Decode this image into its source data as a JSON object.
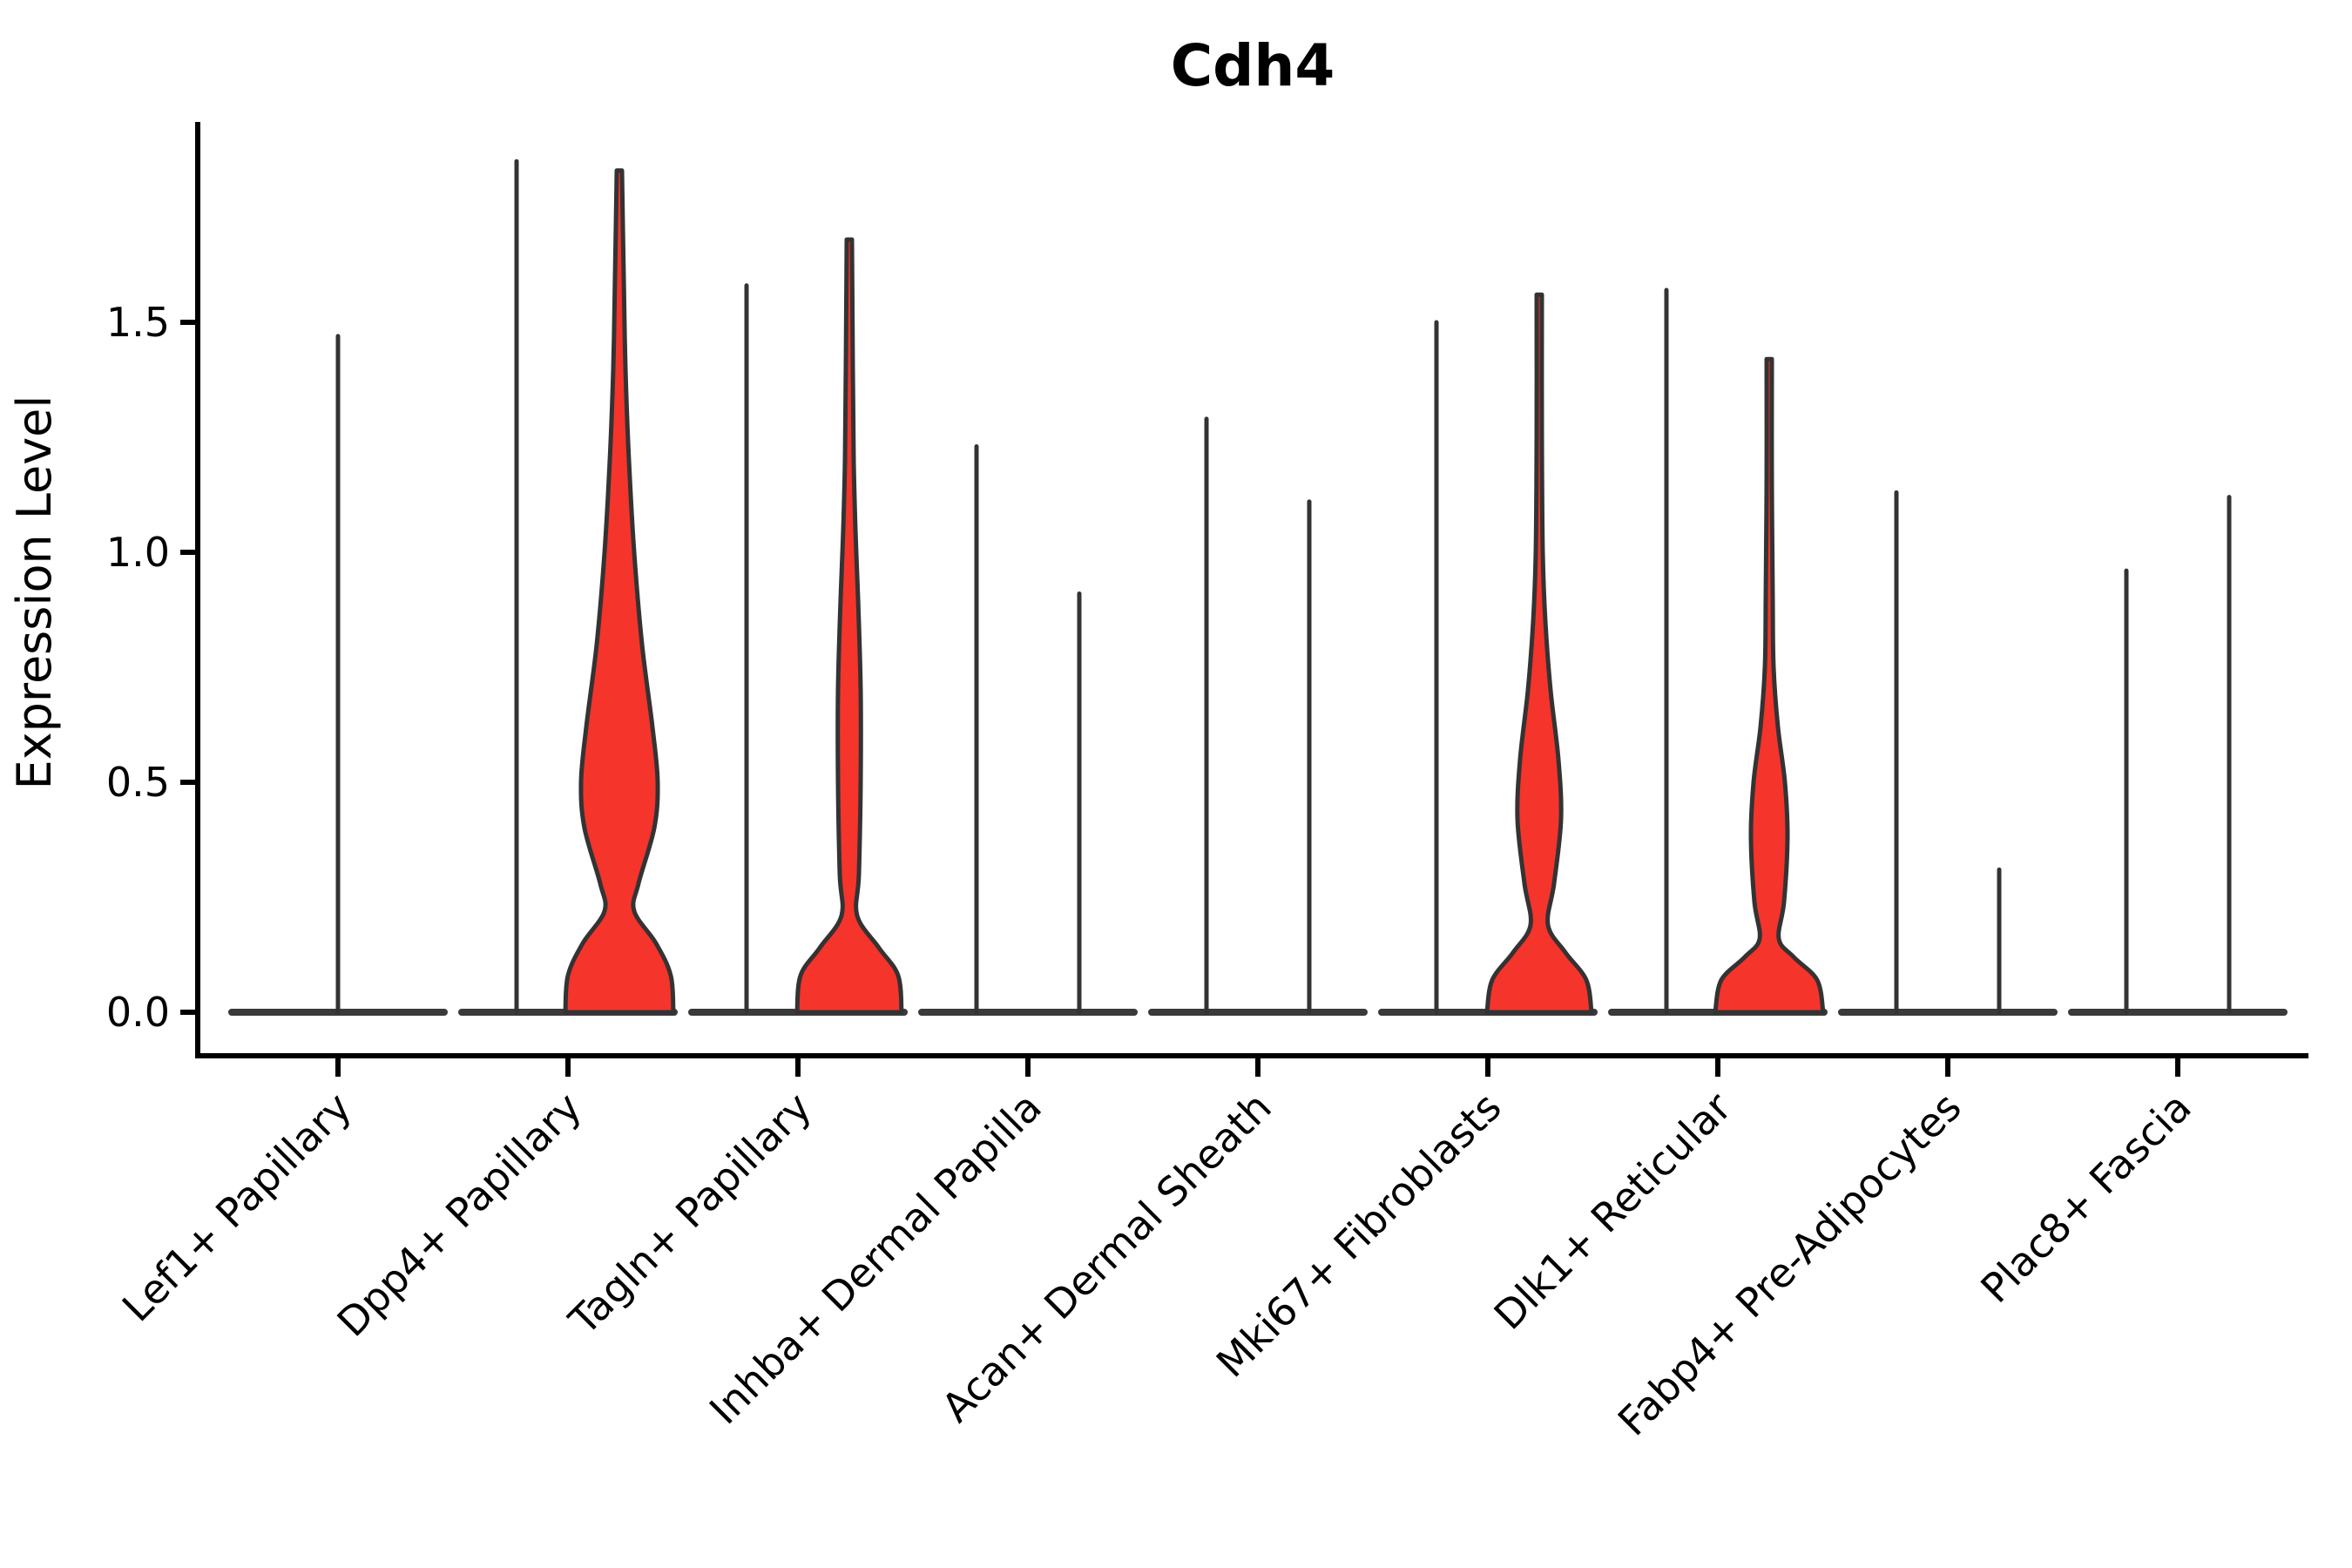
{
  "title": "Cdh4",
  "y_axis": {
    "label": "Expression Level",
    "tick_values": [
      0.0,
      0.5,
      1.0,
      1.5
    ],
    "tick_labels": [
      "0.0",
      "0.5",
      "1.0",
      "1.5"
    ]
  },
  "colors": {
    "violin_fill": "#F5342C",
    "violin_stroke": "#333333",
    "baseline_stroke": "#3a3a3a",
    "axis": "#000000",
    "text": "#000000"
  },
  "chart_data": {
    "type": "violin",
    "title": "Cdh4",
    "xlabel": "",
    "ylabel": "Expression Level",
    "ylim": [
      -0.1,
      1.93
    ],
    "yticks": [
      0,
      0.5,
      1.0,
      1.5
    ],
    "grid": false,
    "legend": "none",
    "x_tick_angle": 45,
    "categories": [
      "Lef1+ Papillary",
      "Dpp4+ Papillary",
      "Tagln+ Papillary",
      "Inhba+ Dermal Papilla",
      "Acan+ Dermal Sheath",
      "Mki67+ Fibroblasts",
      "Dlk1+ Reticular",
      "Fabp4+ Pre-Adipocytes",
      "Plac8+ Fascia"
    ],
    "violins": [
      {
        "category": "Lef1+ Papillary",
        "cat_index": 0,
        "side": "center",
        "kind": "spike",
        "max_expression": 1.47
      },
      {
        "category": "Dpp4+ Papillary",
        "cat_index": 1,
        "side": "left",
        "kind": "spike",
        "max_expression": 1.85
      },
      {
        "category": "Dpp4+ Papillary",
        "cat_index": 1,
        "side": "right",
        "kind": "filled",
        "max_expression": 1.83,
        "profile": [
          [
            0,
            62
          ],
          [
            0.08,
            59
          ],
          [
            0.15,
            42
          ],
          [
            0.22,
            17
          ],
          [
            0.28,
            22
          ],
          [
            0.4,
            40
          ],
          [
            0.5,
            44
          ],
          [
            0.62,
            38
          ],
          [
            0.8,
            26
          ],
          [
            1.0,
            17
          ],
          [
            1.2,
            11
          ],
          [
            1.4,
            7
          ],
          [
            1.6,
            5
          ],
          [
            1.83,
            3
          ]
        ]
      },
      {
        "category": "Tagln+ Papillary",
        "cat_index": 2,
        "side": "left",
        "kind": "spike",
        "max_expression": 1.58
      },
      {
        "category": "Tagln+ Papillary",
        "cat_index": 2,
        "side": "right",
        "kind": "filled",
        "max_expression": 1.68,
        "profile": [
          [
            0,
            60
          ],
          [
            0.08,
            56
          ],
          [
            0.14,
            34
          ],
          [
            0.21,
            9
          ],
          [
            0.3,
            11
          ],
          [
            0.5,
            13
          ],
          [
            0.7,
            13
          ],
          [
            0.9,
            10
          ],
          [
            1.05,
            7
          ],
          [
            1.2,
            5
          ],
          [
            1.4,
            4
          ],
          [
            1.68,
            3
          ]
        ]
      },
      {
        "category": "Inhba+ Dermal Papilla",
        "cat_index": 3,
        "side": "left",
        "kind": "spike",
        "max_expression": 1.23
      },
      {
        "category": "Inhba+ Dermal Papilla",
        "cat_index": 3,
        "side": "right",
        "kind": "spike",
        "max_expression": 0.91
      },
      {
        "category": "Acan+ Dermal Sheath",
        "cat_index": 4,
        "side": "left",
        "kind": "spike",
        "max_expression": 1.29
      },
      {
        "category": "Acan+ Dermal Sheath",
        "cat_index": 4,
        "side": "right",
        "kind": "spike",
        "max_expression": 1.11
      },
      {
        "category": "Mki67+ Fibroblasts",
        "cat_index": 5,
        "side": "left",
        "kind": "spike",
        "max_expression": 1.5
      },
      {
        "category": "Mki67+ Fibroblasts",
        "cat_index": 5,
        "side": "right",
        "kind": "filled",
        "max_expression": 1.56,
        "profile": [
          [
            0,
            60
          ],
          [
            0.07,
            54
          ],
          [
            0.13,
            30
          ],
          [
            0.19,
            10
          ],
          [
            0.28,
            17
          ],
          [
            0.42,
            25
          ],
          [
            0.55,
            22
          ],
          [
            0.7,
            13
          ],
          [
            0.85,
            7
          ],
          [
            1.0,
            4
          ],
          [
            1.25,
            3
          ],
          [
            1.56,
            3
          ]
        ]
      },
      {
        "category": "Dlk1+ Reticular",
        "cat_index": 6,
        "side": "left",
        "kind": "spike",
        "max_expression": 1.57
      },
      {
        "category": "Dlk1+ Reticular",
        "cat_index": 6,
        "side": "right",
        "kind": "filled",
        "max_expression": 1.42,
        "profile": [
          [
            0,
            62
          ],
          [
            0.07,
            55
          ],
          [
            0.12,
            28
          ],
          [
            0.16,
            11
          ],
          [
            0.24,
            17
          ],
          [
            0.38,
            21
          ],
          [
            0.5,
            18
          ],
          [
            0.62,
            10
          ],
          [
            0.75,
            5
          ],
          [
            0.9,
            4
          ],
          [
            1.15,
            3
          ],
          [
            1.42,
            3
          ]
        ]
      },
      {
        "category": "Fabp4+ Pre-Adipocytes",
        "cat_index": 7,
        "side": "left",
        "kind": "spike",
        "max_expression": 1.13
      },
      {
        "category": "Fabp4+ Pre-Adipocytes",
        "cat_index": 7,
        "side": "right",
        "kind": "spike",
        "max_expression": 0.31
      },
      {
        "category": "Plac8+ Fascia",
        "cat_index": 8,
        "side": "left",
        "kind": "spike",
        "max_expression": 0.96
      },
      {
        "category": "Plac8+ Fascia",
        "cat_index": 8,
        "side": "right",
        "kind": "spike",
        "max_expression": 1.12
      }
    ]
  }
}
